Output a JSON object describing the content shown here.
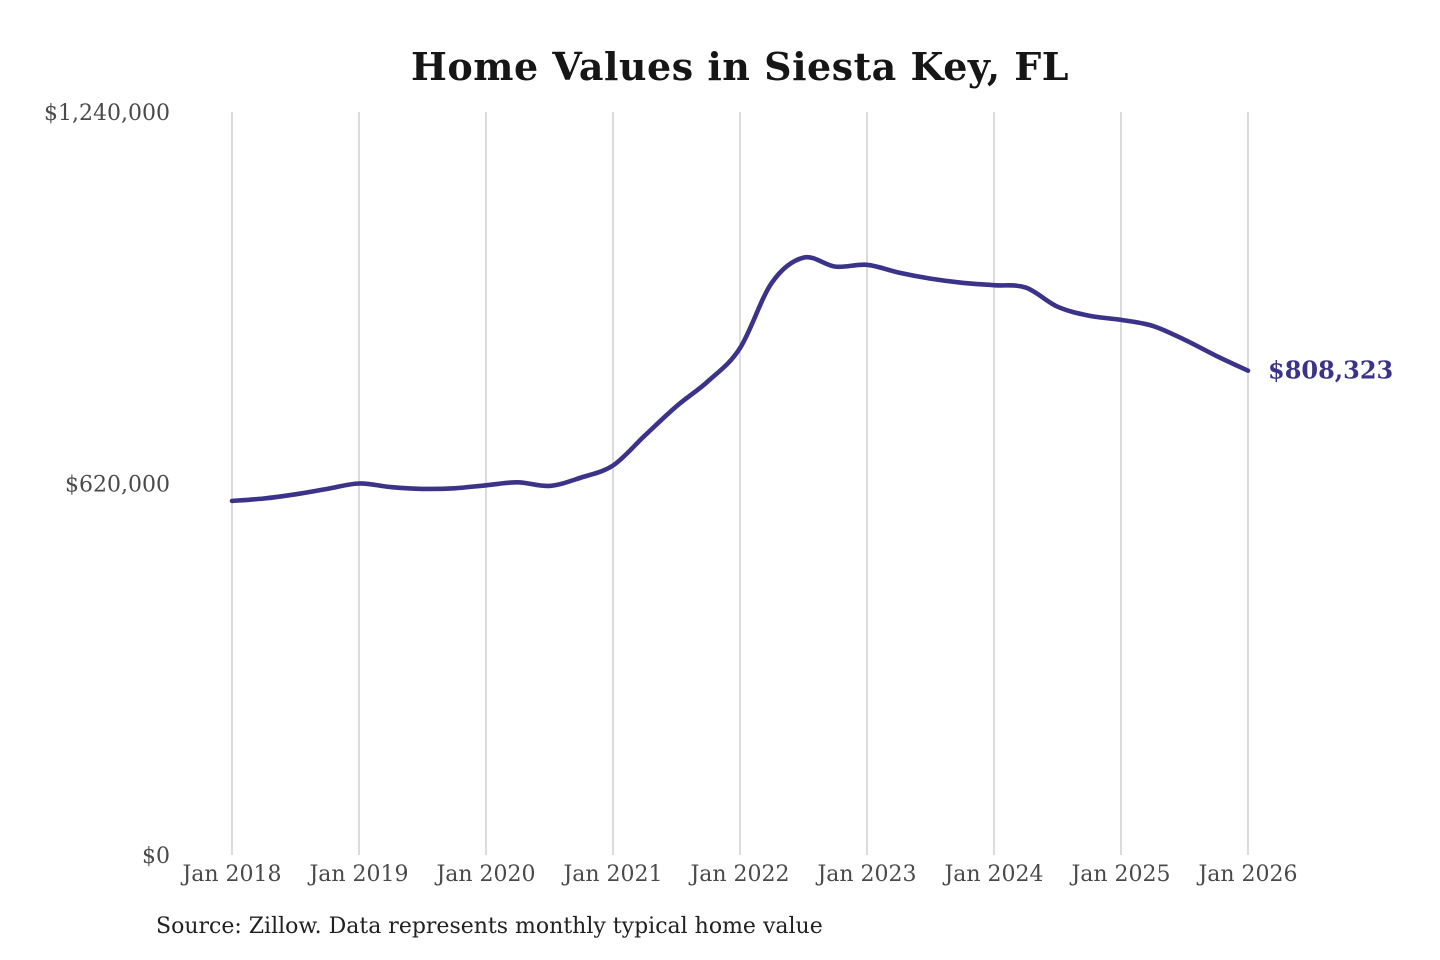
{
  "page": {
    "source_note": "Source: Zillow. Data represents monthly typical home value"
  },
  "chart_data": {
    "type": "line",
    "title": "Home Values in Siesta Key, FL",
    "xlabel": "",
    "ylabel": "",
    "x_tick_labels": [
      "Jan 2018",
      "Jan 2019",
      "Jan 2020",
      "Jan 2021",
      "Jan 2022",
      "Jan 2023",
      "Jan 2024",
      "Jan 2025",
      "Jan 2026"
    ],
    "y_tick_labels": [
      "$0",
      "$620,000",
      "$1,240,000"
    ],
    "y_tick_values": [
      0,
      620000,
      1240000
    ],
    "ylim": [
      0,
      1240000
    ],
    "grid": "vertical-only",
    "legend": "none",
    "x_unit": "months since Jan 2018",
    "points_month_value": [
      [
        0,
        591000
      ],
      [
        3,
        595000
      ],
      [
        6,
        602000
      ],
      [
        9,
        611000
      ],
      [
        12,
        620000
      ],
      [
        15,
        614000
      ],
      [
        18,
        611000
      ],
      [
        21,
        612000
      ],
      [
        24,
        617000
      ],
      [
        27,
        622000
      ],
      [
        30,
        616000
      ],
      [
        33,
        630000
      ],
      [
        36,
        650000
      ],
      [
        39,
        700000
      ],
      [
        42,
        749000
      ],
      [
        45,
        791000
      ],
      [
        48,
        846000
      ],
      [
        51,
        955000
      ],
      [
        54,
        997000
      ],
      [
        57,
        982000
      ],
      [
        60,
        985000
      ],
      [
        63,
        972000
      ],
      [
        66,
        962000
      ],
      [
        69,
        955000
      ],
      [
        72,
        951000
      ],
      [
        75,
        947000
      ],
      [
        78,
        915000
      ],
      [
        81,
        900000
      ],
      [
        84,
        893000
      ],
      [
        87,
        883000
      ],
      [
        90,
        860000
      ],
      [
        93,
        833000
      ],
      [
        96,
        808323
      ]
    ],
    "end_label": "$808,323",
    "end_value": 808323,
    "colors": {
      "line": "#3a3389",
      "grid": "#cccccc",
      "axis_text": "#4a4a4a",
      "end_label": "#3a3389",
      "title": "#161616",
      "background": "#ffffff"
    }
  }
}
